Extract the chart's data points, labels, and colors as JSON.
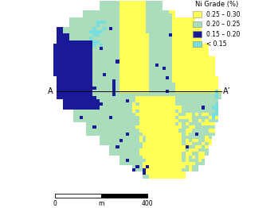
{
  "legend_title": "Ni Grade (%)",
  "legend_entries": [
    {
      "label": "0.25 – 0.30",
      "color": "#FFFF55"
    },
    {
      "label": "0.20 – 0.25",
      "color": "#AADDBB"
    },
    {
      "label": "0.15 – 0.20",
      "color": "#1A1A99"
    },
    {
      "label": "< 0.15",
      "color": "#77DDDD"
    }
  ],
  "colors": {
    "yellow": "#FFFF55",
    "green": "#AADDBB",
    "blue": "#1A1A99",
    "cyan": "#77DDDD",
    "background": "#ffffff"
  },
  "profile_label_left": "A",
  "profile_label_right": "A’"
}
